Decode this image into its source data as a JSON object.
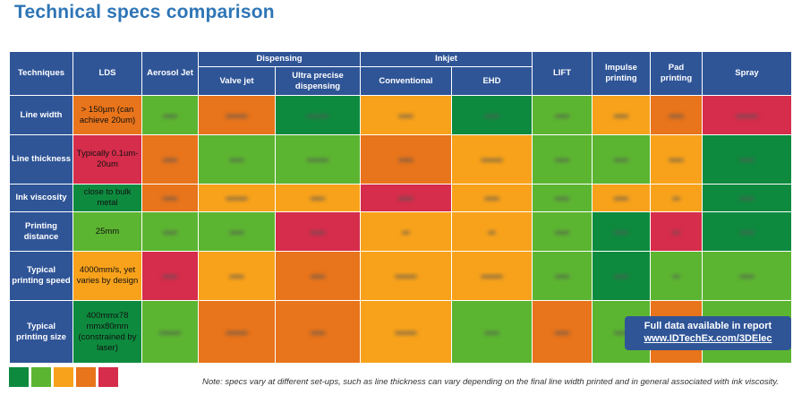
{
  "title": "Technical specs comparison",
  "table": {
    "corner": "Techniques",
    "col_lds": "LDS",
    "col_aerosol": "Aerosol Jet",
    "group_dispensing": "Dispensing",
    "group_inkjet": "Inkjet",
    "col_lift": "LIFT",
    "col_impulse": "Impulse printing",
    "col_pad": "Pad printing",
    "col_spray": "Spray",
    "col_valve": "Valve jet",
    "col_ultra": "Ultra precise dispensing",
    "col_conventional": "Conventional",
    "col_ehd": "EHD",
    "rows": [
      {
        "label": "Line width",
        "lds": "> 150µm (can achieve 20um)"
      },
      {
        "label": "Line thickness",
        "lds": "Typically 0.1um- 20um"
      },
      {
        "label": "Ink viscosity",
        "lds": "close to bulk metal"
      },
      {
        "label": "Printing distance",
        "lds": "25mm"
      },
      {
        "label": "Typical printing speed",
        "lds": "4000mm/s, yet varies by design"
      },
      {
        "label": "Typical printing size",
        "lds": "400mmx78 mmx80mm (constrained by laser)"
      }
    ]
  },
  "colors": {
    "header_blue": "#2f5597",
    "title_blue": "#2e75b6",
    "scale": [
      "#0e8a3e",
      "#5cb531",
      "#f8a21b",
      "#e8741b",
      "#d52d4b"
    ]
  },
  "report": {
    "line1": "Full data available in report",
    "line2": "www.IDTechEx.com/3DElec"
  },
  "note": "Note: specs vary at different set-ups, such as line thickness can vary depending on the final line width printed and in general associated with ink viscosity."
}
